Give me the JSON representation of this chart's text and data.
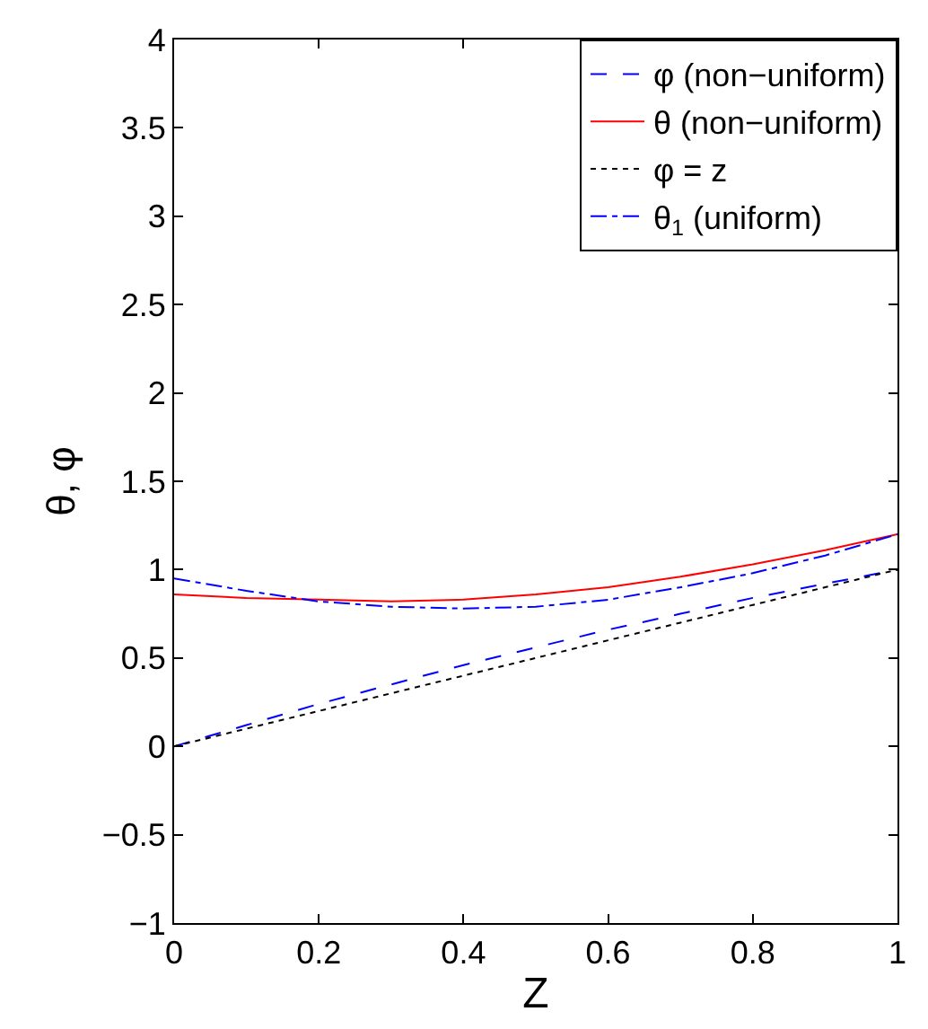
{
  "chart_data": {
    "type": "line",
    "xlabel": "Z",
    "ylabel": "θ, φ",
    "x": [
      0,
      0.1,
      0.2,
      0.3,
      0.4,
      0.5,
      0.6,
      0.7,
      0.8,
      0.9,
      1.0
    ],
    "series": [
      {
        "name": "φ (non−uniform)",
        "color": "#0000ff",
        "line_style": "dashed",
        "values": [
          0,
          0.12,
          0.24,
          0.35,
          0.46,
          0.56,
          0.66,
          0.75,
          0.84,
          0.92,
          1.0
        ]
      },
      {
        "name": "θ (non−uniform)",
        "color": "#ff0000",
        "line_style": "solid",
        "values": [
          0.86,
          0.84,
          0.83,
          0.82,
          0.83,
          0.86,
          0.9,
          0.96,
          1.03,
          1.11,
          1.2
        ]
      },
      {
        "name": "φ = z",
        "color": "#000000",
        "line_style": "dotted",
        "values": [
          0,
          0.1,
          0.2,
          0.3,
          0.4,
          0.5,
          0.6,
          0.7,
          0.8,
          0.9,
          1.0
        ]
      },
      {
        "name": "θ$_{1}$ (uniform)",
        "color": "#0000ff",
        "line_style": "dashdot",
        "values": [
          0.95,
          0.88,
          0.82,
          0.79,
          0.78,
          0.79,
          0.83,
          0.9,
          0.98,
          1.08,
          1.2
        ]
      }
    ],
    "xlim": [
      0,
      1
    ],
    "xticks": [
      0,
      0.2,
      0.4,
      0.6,
      0.8,
      1
    ],
    "ylim": [
      -1,
      4
    ],
    "yticks": [
      -1,
      -0.5,
      0,
      0.5,
      1,
      1.5,
      2,
      2.5,
      3,
      3.5,
      4
    ],
    "legend": "top right",
    "marker": "none"
  }
}
